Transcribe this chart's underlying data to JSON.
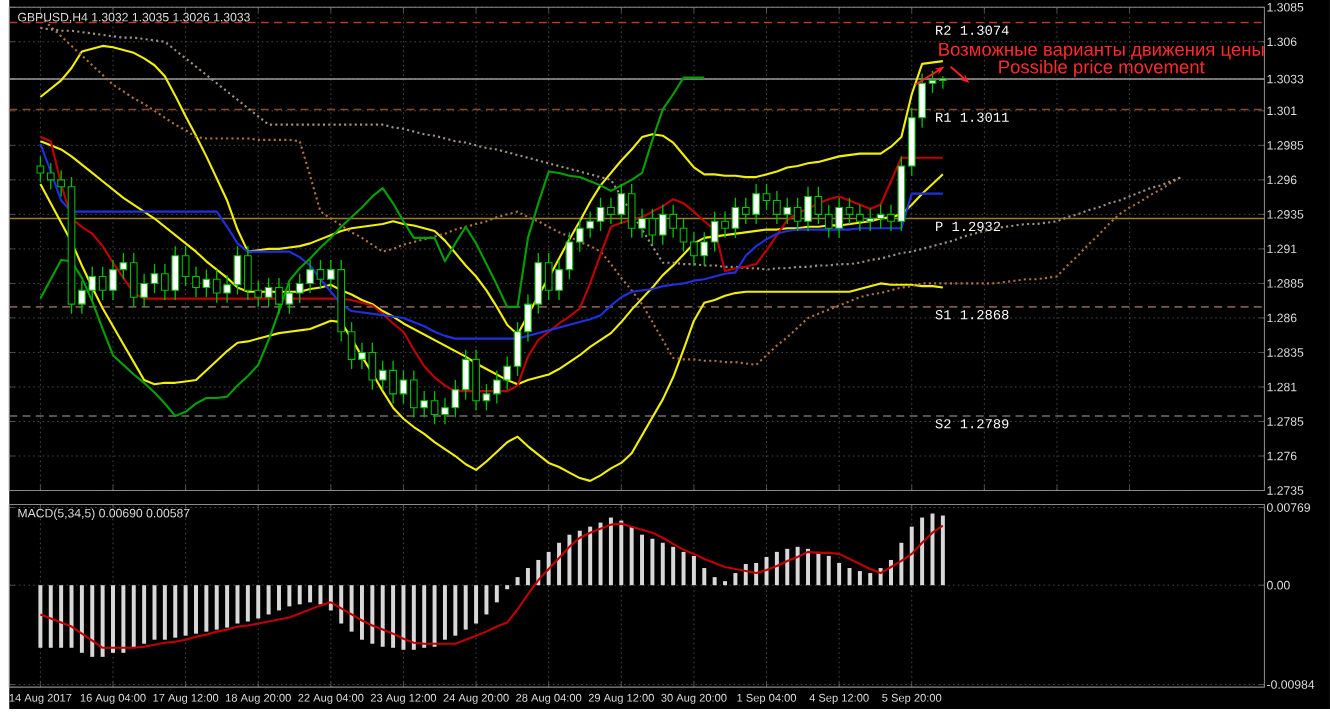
{
  "chart_data": [
    {
      "type": "candlestick",
      "title": "GBPUSD,H4  1.3032 1.3035 1.3026 1.3033",
      "categories": [
        null,
        null,
        null,
        null,
        null,
        null,
        null,
        null,
        null,
        null,
        null,
        null,
        null,
        null,
        null,
        null,
        null,
        null,
        null,
        null,
        null,
        null,
        null,
        null,
        null,
        null,
        null,
        null,
        null,
        null,
        null,
        null,
        null,
        null,
        null,
        null,
        null,
        null,
        null,
        null,
        null,
        null,
        null,
        null,
        null,
        null,
        null,
        null,
        null,
        null,
        null,
        null,
        null,
        null,
        null,
        null,
        null,
        null,
        null,
        null,
        null,
        null,
        null,
        null,
        null,
        null,
        null,
        null,
        null,
        null,
        null,
        null,
        null,
        null,
        null,
        null,
        null,
        null,
        null,
        null,
        null,
        null,
        null,
        null,
        null,
        null,
        null,
        null,
        null,
        null,
        null,
        null,
        null,
        null,
        null,
        null,
        null,
        null,
        null,
        null,
        null,
        null,
        null,
        null,
        null,
        null,
        null,
        null,
        null,
        null,
        null
      ],
      "ohlc": [
        [
          1.297,
          1.2977,
          1.2958,
          1.2965
        ],
        [
          1.2965,
          1.2972,
          1.2953,
          1.296
        ],
        [
          1.296,
          1.2967,
          1.2948,
          1.2955
        ],
        [
          1.2955,
          1.2962,
          1.2863,
          1.287
        ],
        [
          1.287,
          1.2887,
          1.2863,
          1.288
        ],
        [
          1.288,
          1.2897,
          1.2873,
          1.289
        ],
        [
          1.289,
          1.2897,
          1.2873,
          1.288
        ],
        [
          1.288,
          1.2902,
          1.2873,
          1.2895
        ],
        [
          1.2895,
          1.2907,
          1.2888,
          1.29
        ],
        [
          1.29,
          1.2907,
          1.2868,
          1.2875
        ],
        [
          1.2875,
          1.2892,
          1.2868,
          1.2885
        ],
        [
          1.2885,
          1.2899,
          1.2878,
          1.2892
        ],
        [
          1.2892,
          1.2899,
          1.2873,
          1.288
        ],
        [
          1.288,
          1.2912,
          1.2873,
          1.2905
        ],
        [
          1.2905,
          1.2912,
          1.2883,
          1.289
        ],
        [
          1.289,
          1.2897,
          1.2875,
          1.2882
        ],
        [
          1.2882,
          1.2895,
          1.2875,
          1.2888
        ],
        [
          1.2888,
          1.2895,
          1.2871,
          1.2878
        ],
        [
          1.2878,
          1.2891,
          1.2871,
          1.2884
        ],
        [
          1.2884,
          1.2912,
          1.2877,
          1.2905
        ],
        [
          1.2905,
          1.2912,
          1.2873,
          1.288
        ],
        [
          1.288,
          1.2887,
          1.2868,
          1.2875
        ],
        [
          1.2875,
          1.2889,
          1.2868,
          1.2882
        ],
        [
          1.2882,
          1.2889,
          1.2863,
          1.287
        ],
        [
          1.287,
          1.2885,
          1.2863,
          1.2878
        ],
        [
          1.2878,
          1.2892,
          1.2871,
          1.2885
        ],
        [
          1.2885,
          1.2902,
          1.2878,
          1.2895
        ],
        [
          1.2895,
          1.2902,
          1.2881,
          1.2888
        ],
        [
          1.2888,
          1.2902,
          1.2881,
          1.2895
        ],
        [
          1.2895,
          1.2902,
          1.2843,
          1.285
        ],
        [
          1.285,
          1.2857,
          1.2823,
          1.283
        ],
        [
          1.283,
          1.2842,
          1.2823,
          1.2835
        ],
        [
          1.2835,
          1.2842,
          1.2808,
          1.2815
        ],
        [
          1.2815,
          1.2829,
          1.2808,
          1.2822
        ],
        [
          1.2822,
          1.2829,
          1.2798,
          1.2805
        ],
        [
          1.2805,
          1.2822,
          1.2798,
          1.2815
        ],
        [
          1.2815,
          1.2822,
          1.2788,
          1.2795
        ],
        [
          1.2795,
          1.2807,
          1.2788,
          1.28
        ],
        [
          1.28,
          1.2807,
          1.2783,
          1.279
        ],
        [
          1.279,
          1.2802,
          1.2783,
          1.2795
        ],
        [
          1.2795,
          1.2815,
          1.2788,
          1.2808
        ],
        [
          1.2808,
          1.2837,
          1.2801,
          1.283
        ],
        [
          1.283,
          1.2837,
          1.2793,
          1.28
        ],
        [
          1.28,
          1.2812,
          1.2793,
          1.2805
        ],
        [
          1.2805,
          1.2822,
          1.2798,
          1.2815
        ],
        [
          1.2815,
          1.2832,
          1.2808,
          1.2825
        ],
        [
          1.2825,
          1.2857,
          1.2818,
          1.285
        ],
        [
          1.285,
          1.2877,
          1.2843,
          1.287
        ],
        [
          1.287,
          1.2907,
          1.2863,
          1.29
        ],
        [
          1.29,
          1.2907,
          1.2873,
          1.288
        ],
        [
          1.288,
          1.2902,
          1.2873,
          1.2895
        ],
        [
          1.2895,
          1.2922,
          1.2888,
          1.2915
        ],
        [
          1.2915,
          1.2932,
          1.2908,
          1.2925
        ],
        [
          1.2925,
          1.2937,
          1.2918,
          1.293
        ],
        [
          1.293,
          1.2947,
          1.2923,
          1.294
        ],
        [
          1.294,
          1.2947,
          1.2928,
          1.2935
        ],
        [
          1.2935,
          1.2957,
          1.2928,
          1.295
        ],
        [
          1.295,
          1.2957,
          1.2918,
          1.2925
        ],
        [
          1.2925,
          1.2939,
          1.2918,
          1.2932
        ],
        [
          1.2932,
          1.2939,
          1.2913,
          1.292
        ],
        [
          1.292,
          1.2942,
          1.2913,
          1.2935
        ],
        [
          1.2935,
          1.2942,
          1.2918,
          1.2925
        ],
        [
          1.2925,
          1.2932,
          1.2908,
          1.2915
        ],
        [
          1.2915,
          1.2922,
          1.2898,
          1.2905
        ],
        [
          1.2905,
          1.2922,
          1.2898,
          1.2915
        ],
        [
          1.2915,
          1.2937,
          1.2908,
          1.293
        ],
        [
          1.293,
          1.2937,
          1.2918,
          1.2925
        ],
        [
          1.2925,
          1.2947,
          1.2918,
          1.294
        ],
        [
          1.294,
          1.2947,
          1.2928,
          1.2935
        ],
        [
          1.2935,
          1.2957,
          1.2928,
          1.295
        ],
        [
          1.295,
          1.2957,
          1.2938,
          1.2945
        ],
        [
          1.2945,
          1.2952,
          1.2928,
          1.2935
        ],
        [
          1.2935,
          1.2947,
          1.2928,
          1.294
        ],
        [
          1.294,
          1.2947,
          1.2923,
          1.293
        ],
        [
          1.293,
          1.2955,
          1.2923,
          1.2948
        ],
        [
          1.2948,
          1.2955,
          1.2928,
          1.2935
        ],
        [
          1.2935,
          1.2942,
          1.2918,
          1.2925
        ],
        [
          1.2925,
          1.2947,
          1.2918,
          1.294
        ],
        [
          1.294,
          1.2947,
          1.2928,
          1.2935
        ],
        [
          1.2935,
          1.2942,
          1.2923,
          1.293
        ],
        [
          1.293,
          1.2939,
          1.2923,
          1.2932
        ],
        [
          1.2932,
          1.2942,
          1.2925,
          1.2935
        ],
        [
          1.2935,
          1.2942,
          1.2923,
          1.293
        ],
        [
          1.293,
          1.2977,
          1.2923,
          1.297
        ],
        [
          1.297,
          1.3012,
          1.2963,
          1.3005
        ],
        [
          1.3005,
          1.3037,
          1.2998,
          1.303
        ],
        [
          1.303,
          1.3039,
          1.3023,
          1.3032
        ],
        [
          1.3032,
          1.3035,
          1.3026,
          1.3033
        ],
        null,
        null,
        null,
        null,
        null,
        null,
        null,
        null,
        null,
        null,
        null,
        null,
        null,
        null,
        null,
        null,
        null,
        null,
        null,
        null,
        null,
        null,
        null
      ],
      "ylim": [
        1.2735,
        1.3085
      ],
      "yticks": [
        1.3085,
        1.306,
        {
          "value": 1.3033,
          "label": "1.3033"
        },
        1.301,
        1.2985,
        1.296,
        1.2935,
        1.291,
        1.2885,
        1.286,
        1.2835,
        1.281,
        1.2785,
        1.276,
        1.2735
      ],
      "tick_labels": "y",
      "grid": true,
      "ref_lines": [
        {
          "axis": "y",
          "value": 1.3074,
          "label": "R2 1.3074",
          "color": "#c0392b",
          "line_style": "dashed"
        },
        {
          "axis": "y",
          "value": 1.3011,
          "label": "R1 1.3011",
          "color": "#8b4a2b",
          "line_style": "dashed"
        },
        {
          "axis": "y",
          "value": 1.3033,
          "color": "#9a9a9a",
          "line_style": "solid"
        },
        {
          "axis": "y",
          "value": 1.2932,
          "label": "P 1.2932",
          "color": "#9a7d2a",
          "line_style": "solid"
        },
        {
          "axis": "y",
          "value": 1.2868,
          "label": "S1 1.2868",
          "color": "#7a5a50",
          "line_style": "dashed"
        },
        {
          "axis": "y",
          "value": 1.2789,
          "label": "S2 1.2789",
          "color": "#7a6a6a",
          "line_style": "dashed"
        }
      ],
      "annotations": [
        "Возможные варианты движения цены",
        "Possible price movement"
      ],
      "series": [
        {
          "type": "line",
          "color": "#f0f000",
          "values": [
            1.302,
            1.3026,
            1.3032,
            1.3041,
            1.3053,
            1.3055,
            1.3057,
            1.3056,
            1.3054,
            1.3052,
            1.3048,
            1.3043,
            1.3035,
            1.3021,
            1.3006,
            1.2992,
            1.2977,
            1.2961,
            1.2945,
            1.2924,
            1.2908,
            1.2909,
            1.291,
            1.291,
            1.2911,
            1.2912,
            1.2914,
            1.2917,
            1.292,
            1.2923,
            1.2925,
            1.2926,
            1.2927,
            1.2928,
            1.293,
            1.2928,
            1.2927,
            1.2925,
            1.2923,
            1.2916,
            1.2907,
            1.2898,
            1.289,
            1.288,
            1.2868,
            1.2855,
            1.2848,
            1.2862,
            1.2876,
            1.2889,
            1.2903,
            1.2917,
            1.293,
            1.2944,
            1.2956,
            1.2965,
            1.2974,
            1.2982,
            1.2991,
            1.2993,
            1.2992,
            1.2987,
            1.2978,
            1.2969,
            1.2964,
            1.2964,
            1.2963,
            1.2963,
            1.2962,
            1.2962,
            1.2964,
            1.2966,
            1.2969,
            1.297,
            1.2972,
            1.2973,
            1.2975,
            1.2977,
            1.2978,
            1.2979,
            1.2979,
            1.2979,
            1.2984,
            1.2991,
            1.3022,
            1.3044,
            1.3045,
            1.3046,
            null,
            null,
            null,
            null,
            null,
            null,
            null,
            null,
            null,
            null,
            null,
            null,
            null,
            null,
            null,
            null,
            null,
            null,
            null,
            null,
            null,
            null,
            null
          ]
        },
        {
          "type": "line",
          "color": "#f0f000",
          "values": [
            1.2988,
            1.2985,
            1.2982,
            1.2977,
            1.2971,
            1.2965,
            1.2959,
            1.2953,
            1.2947,
            1.2942,
            1.2937,
            1.2932,
            1.2926,
            1.292,
            1.2914,
            1.2908,
            1.2901,
            1.2895,
            1.2889,
            1.2882,
            1.2879,
            1.2879,
            1.2879,
            1.2879,
            1.2879,
            1.2879,
            1.2881,
            1.2882,
            1.2884,
            1.288,
            1.2877,
            1.2873,
            1.287,
            1.2865,
            1.2861,
            1.2856,
            1.2852,
            1.2848,
            1.2844,
            1.284,
            1.2836,
            1.2832,
            1.2827,
            1.2823,
            1.2819,
            1.2815,
            1.2812,
            1.2815,
            1.2817,
            1.2819,
            1.2823,
            1.2828,
            1.2833,
            1.2839,
            1.2844,
            1.2849,
            1.2857,
            1.2866,
            1.2874,
            1.2882,
            1.2891,
            1.2898,
            1.2906,
            1.2914,
            1.2918,
            1.2919,
            1.292,
            1.2921,
            1.2922,
            1.2923,
            1.2924,
            1.2924,
            1.2925,
            1.2925,
            1.2926,
            1.2926,
            1.2927,
            1.2927,
            1.2928,
            1.2929,
            1.293,
            1.2932,
            1.2933,
            1.2935,
            1.2942,
            1.295,
            1.2957,
            1.2964,
            null,
            null,
            null,
            null,
            null,
            null,
            null,
            null,
            null,
            null,
            null,
            null,
            null,
            null,
            null,
            null,
            null,
            null,
            null,
            null,
            null,
            null,
            null
          ]
        },
        {
          "type": "line",
          "color": "#f0f000",
          "values": [
            1.2957,
            1.2943,
            1.2929,
            1.2915,
            1.2898,
            1.2882,
            1.2867,
            1.2854,
            1.2841,
            1.2828,
            1.2815,
            1.2812,
            1.2813,
            1.2813,
            1.2814,
            1.2815,
            1.2822,
            1.2829,
            1.2836,
            1.2842,
            1.2843,
            1.2845,
            1.2847,
            1.2849,
            1.285,
            1.2851,
            1.2852,
            1.2855,
            1.2858,
            1.2857,
            1.2845,
            1.2832,
            1.282,
            1.2807,
            1.2795,
            1.2787,
            1.2781,
            1.2776,
            1.277,
            1.2765,
            1.276,
            1.2754,
            1.275,
            1.2756,
            1.2763,
            1.277,
            1.2774,
            1.2767,
            1.2761,
            1.2755,
            1.2752,
            1.2748,
            1.2744,
            1.2742,
            1.2746,
            1.2751,
            1.2755,
            1.2762,
            1.2775,
            1.2788,
            1.2801,
            1.2817,
            1.2837,
            1.2858,
            1.2871,
            1.2873,
            1.2876,
            1.2878,
            1.2879,
            1.2879,
            1.2879,
            1.2879,
            1.2879,
            1.2879,
            1.2879,
            1.2879,
            1.2879,
            1.2879,
            1.2879,
            1.2881,
            1.2883,
            1.2885,
            1.2884,
            1.2884,
            1.2884,
            1.2883,
            1.2883,
            1.2882,
            null,
            null,
            null,
            null,
            null,
            null,
            null,
            null,
            null,
            null,
            null,
            null,
            null,
            null,
            null,
            null,
            null,
            null,
            null,
            null,
            null,
            null,
            null
          ]
        },
        {
          "type": "line",
          "color": "#b07040",
          "line_style": "dotted",
          "values": [
            1.3078,
            1.3071,
            1.3064,
            1.3057,
            1.305,
            1.3043,
            1.3036,
            1.3029,
            1.3024,
            1.3019,
            1.3015,
            1.301,
            1.3005,
            1.3,
            1.2996,
            1.2991,
            1.299,
            1.299,
            1.299,
            1.299,
            1.299,
            1.2989,
            1.2989,
            1.2989,
            1.2989,
            1.2988,
            1.2963,
            1.2937,
            1.2932,
            1.2927,
            1.2922,
            1.2918,
            1.2913,
            1.2908,
            1.291,
            1.2913,
            1.2915,
            1.2917,
            1.2919,
            1.2921,
            1.2924,
            1.2926,
            1.2928,
            1.293,
            1.2933,
            1.2935,
            1.2937,
            1.2933,
            1.293,
            1.2926,
            1.2922,
            1.2919,
            1.2915,
            1.2912,
            1.2908,
            1.2899,
            1.2889,
            1.288,
            1.287,
            1.2857,
            1.2844,
            1.2831,
            1.283,
            1.283,
            1.2829,
            1.2829,
            1.2828,
            1.2828,
            1.2827,
            1.2826,
            1.2833,
            1.284,
            1.2846,
            1.2853,
            1.286,
            1.2863,
            1.2866,
            1.2869,
            1.2872,
            1.2875,
            1.2877,
            1.2878,
            1.288,
            1.2882,
            1.2883,
            1.2885,
            1.2885,
            1.2885,
            1.2885,
            1.2885,
            1.2885,
            1.2885,
            1.2885,
            1.2886,
            1.2887,
            1.2888,
            1.2888,
            1.2889,
            1.289,
            1.2898,
            1.2905,
            1.2913,
            1.292,
            1.2928,
            1.2935,
            1.294,
            1.2944,
            1.2949,
            1.2953,
            1.2958,
            1.2962
          ]
        },
        {
          "type": "line",
          "color": "#a09080",
          "line_style": "dotted",
          "values": [
            1.307,
            1.3069,
            1.3068,
            1.3068,
            1.3067,
            1.3066,
            1.3065,
            1.3064,
            1.3063,
            1.3063,
            1.3062,
            1.3061,
            1.306,
            1.3054,
            1.3048,
            1.3042,
            1.3036,
            1.303,
            1.3024,
            1.3018,
            1.3012,
            1.3006,
            1.3,
            1.3,
            1.3,
            1.3,
            1.3,
            1.3,
            1.3,
            1.3,
            1.3,
            1.3,
            1.3,
            1.3,
            1.2998,
            1.2997,
            1.2995,
            1.2993,
            1.2992,
            1.299,
            1.2988,
            1.2987,
            1.2985,
            1.2983,
            1.2982,
            1.298,
            1.2978,
            1.2976,
            1.2974,
            1.2972,
            1.297,
            1.2968,
            1.2966,
            1.2964,
            1.2962,
            1.296,
            1.2948,
            1.2936,
            1.2924,
            1.2912,
            1.29,
            1.29,
            1.2899,
            1.2899,
            1.2898,
            1.2898,
            1.2897,
            1.2897,
            1.2896,
            1.2896,
            1.2895,
            1.2896,
            1.2896,
            1.2897,
            1.2897,
            1.2898,
            1.2898,
            1.2899,
            1.2899,
            1.29,
            1.2902,
            1.2903,
            1.2905,
            1.2907,
            1.2908,
            1.291,
            1.2912,
            1.2914,
            1.2916,
            1.2919,
            1.2921,
            1.2923,
            1.2925,
            1.2926,
            1.2927,
            1.2928,
            1.2928,
            1.2929,
            1.293,
            1.2933,
            1.2935,
            1.2938,
            1.294,
            1.2943,
            1.2945,
            1.2948,
            1.2951,
            1.2954,
            1.2956,
            1.2959,
            1.2962
          ]
        },
        {
          "type": "line",
          "color": "#c00000",
          "values": [
            1.2991,
            1.2988,
            1.2957,
            1.2932,
            1.2926,
            1.2921,
            1.2912,
            1.29,
            1.2889,
            1.2878,
            1.2874,
            1.2874,
            1.2874,
            1.2874,
            1.2874,
            1.2874,
            1.2874,
            1.2874,
            1.2874,
            1.2874,
            1.2874,
            1.2874,
            1.2874,
            1.2874,
            1.2874,
            1.2874,
            1.2874,
            1.2874,
            1.2874,
            1.2874,
            1.2873,
            1.2871,
            1.2869,
            1.2863,
            1.2856,
            1.285,
            1.2837,
            1.2825,
            1.2817,
            1.2811,
            1.2807,
            1.2807,
            1.2807,
            1.2807,
            1.2807,
            1.2807,
            1.2811,
            1.2832,
            1.2844,
            1.285,
            1.2856,
            1.2861,
            1.2867,
            1.2885,
            1.2906,
            1.2926,
            1.2929,
            1.2931,
            1.2933,
            1.2937,
            1.2941,
            1.2946,
            1.2943,
            1.2937,
            1.293,
            1.2924,
            1.2894,
            1.2896,
            1.2897,
            1.2899,
            1.2909,
            1.292,
            1.2931,
            1.2936,
            1.2939,
            1.2943,
            1.2946,
            1.2948,
            1.2945,
            1.2942,
            1.2939,
            1.2942,
            1.2959,
            1.2976,
            1.2976,
            1.2976,
            1.2976,
            1.2976,
            null,
            null,
            null,
            null,
            null,
            null,
            null,
            null,
            null,
            null,
            null,
            null,
            null,
            null,
            null,
            null,
            null,
            null,
            null,
            null,
            null,
            null,
            null
          ]
        },
        {
          "type": "line",
          "color": "#2030e0",
          "values": [
            1.2986,
            1.2966,
            1.2945,
            1.2937,
            1.2937,
            1.2937,
            1.2937,
            1.2937,
            1.2937,
            1.2937,
            1.2937,
            1.2937,
            1.2937,
            1.2937,
            1.2937,
            1.2937,
            1.2937,
            1.2937,
            1.2926,
            1.2914,
            1.2908,
            1.2908,
            1.2908,
            1.2908,
            1.2908,
            1.2904,
            1.2898,
            1.2888,
            1.2879,
            1.287,
            1.2865,
            1.2864,
            1.2863,
            1.2862,
            1.2861,
            1.286,
            1.2857,
            1.2854,
            1.285,
            1.2847,
            1.2845,
            1.2845,
            1.2845,
            1.2845,
            1.2845,
            1.2845,
            1.2845,
            1.2847,
            1.2849,
            1.2851,
            1.2853,
            1.2855,
            1.2857,
            1.2859,
            1.2862,
            1.2869,
            1.2875,
            1.2879,
            1.288,
            1.2881,
            1.2883,
            1.2884,
            1.2885,
            1.2887,
            1.2888,
            1.289,
            1.2892,
            1.2893,
            1.2905,
            1.2912,
            1.2917,
            1.2921,
            1.2923,
            1.2924,
            1.2924,
            1.2924,
            1.2924,
            1.2924,
            1.2924,
            1.2925,
            1.2925,
            1.2925,
            1.2925,
            1.2925,
            1.295,
            1.295,
            1.295,
            1.295,
            null,
            null,
            null,
            null,
            null,
            null,
            null,
            null,
            null,
            null,
            null,
            null,
            null,
            null,
            null,
            null,
            null,
            null,
            null,
            null,
            null,
            null,
            null
          ]
        },
        {
          "type": "line",
          "color": "#00a000",
          "values": [
            1.2874,
            1.2888,
            1.2902,
            1.2901,
            1.2889,
            1.2872,
            1.2852,
            1.2833,
            1.2826,
            1.2819,
            1.2813,
            1.2806,
            1.2798,
            1.2789,
            1.2792,
            1.2798,
            1.2802,
            1.2802,
            1.2803,
            1.2811,
            1.2818,
            1.2826,
            1.2844,
            1.2865,
            1.2887,
            1.2896,
            1.2903,
            1.2911,
            1.2918,
            1.2926,
            1.2933,
            1.294,
            1.2948,
            1.2954,
            1.2943,
            1.293,
            1.2918,
            1.2918,
            1.2918,
            1.2901,
            1.2914,
            1.2926,
            1.2914,
            1.2899,
            1.2884,
            1.2868,
            1.2868,
            1.2918,
            1.2943,
            1.2966,
            1.2965,
            1.2963,
            1.2962,
            1.2959,
            1.2956,
            1.2952,
            1.2956,
            1.296,
            1.2965,
            1.2989,
            1.3011,
            1.3022,
            1.3034,
            1.3034,
            1.3034,
            null,
            null,
            null,
            null,
            null,
            null,
            null,
            null,
            null,
            null,
            null,
            null,
            null,
            null,
            null,
            null,
            null,
            null,
            null,
            null,
            null,
            null,
            null,
            null,
            null,
            null,
            null,
            null,
            null,
            null,
            null,
            null,
            null,
            null,
            null,
            null,
            null,
            null,
            null,
            null,
            null,
            null,
            null,
            null,
            null,
            null
          ]
        }
      ]
    },
    {
      "type": "bar",
      "title": "MACD(5,34,5) 0.00690 0.00587",
      "categories": [
        "14 Aug 2017",
        null,
        null,
        null,
        null,
        null,
        null,
        "16 Aug 04:00",
        null,
        null,
        null,
        null,
        null,
        null,
        "17 Aug 12:00",
        null,
        null,
        null,
        null,
        null,
        null,
        "18 Aug 20:00",
        null,
        null,
        null,
        null,
        null,
        null,
        "22 Aug 04:00",
        null,
        null,
        null,
        null,
        null,
        null,
        "23 Aug 12:00",
        null,
        null,
        null,
        null,
        null,
        null,
        "24 Aug 20:00",
        null,
        null,
        null,
        null,
        null,
        null,
        "28 Aug 04:00",
        null,
        null,
        null,
        null,
        null,
        null,
        "29 Aug 12:00",
        null,
        null,
        null,
        null,
        null,
        null,
        "30 Aug 20:00",
        null,
        null,
        null,
        null,
        null,
        null,
        "1 Sep 04:00",
        null,
        null,
        null,
        null,
        null,
        null,
        "4 Sep 12:00",
        null,
        null,
        null,
        null,
        null,
        null,
        "5 Sep 20:00",
        null,
        null,
        null,
        null,
        null,
        null,
        null,
        null,
        null,
        null,
        null,
        null,
        null,
        null,
        null,
        null,
        null,
        null,
        null,
        null,
        null,
        null,
        null,
        null,
        null,
        null
      ],
      "ylim": [
        -0.0101,
        0.008
      ],
      "yticks": [
        {
          "value": 0.00769,
          "label": "0.00769"
        },
        {
          "value": 0,
          "label": "0.00"
        },
        {
          "value": -0.00984,
          "label": "-0.00984"
        }
      ],
      "grid": true,
      "series": [
        {
          "type": "bar",
          "color": "#d8d8d8",
          "values": [
            -0.0062,
            -0.0062,
            -0.0062,
            -0.0062,
            -0.0067,
            -0.0071,
            -0.0071,
            -0.0067,
            -0.0067,
            -0.0062,
            -0.0058,
            -0.0054,
            -0.0054,
            -0.0052,
            -0.005,
            -0.0048,
            -0.0046,
            -0.0044,
            -0.0042,
            -0.0038,
            -0.0036,
            -0.0033,
            -0.0029,
            -0.0025,
            -0.0021,
            -0.0019,
            -0.0017,
            -0.0019,
            -0.0025,
            -0.0038,
            -0.0046,
            -0.0054,
            -0.0058,
            -0.0061,
            -0.0062,
            -0.0064,
            -0.0064,
            -0.0062,
            -0.0061,
            -0.0054,
            -0.005,
            -0.0044,
            -0.0038,
            -0.0029,
            -0.0017,
            -0.0004,
            0.0008,
            0.0017,
            0.0025,
            0.0033,
            0.0042,
            0.005,
            0.0054,
            0.0058,
            0.0062,
            0.0067,
            0.0064,
            0.0058,
            0.005,
            0.0046,
            0.0042,
            0.0038,
            0.0033,
            0.0029,
            0.0017,
            0.0008,
            0.0004,
            0.0012,
            0.0021,
            0.0022,
            0.0028,
            0.0033,
            0.0036,
            0.0038,
            0.0036,
            0.0033,
            0.0029,
            0.0022,
            0.0017,
            0.0014,
            0.0012,
            0.0017,
            0.0025,
            0.0042,
            0.0058,
            0.0067,
            0.0071,
            0.0069,
            null,
            null,
            null,
            null,
            null,
            null,
            null,
            null,
            null,
            null,
            null,
            null,
            null,
            null,
            null,
            null,
            null,
            null,
            null,
            null,
            null,
            null,
            null
          ]
        },
        {
          "type": "line",
          "color": "#c00000",
          "values": [
            -0.0029,
            -0.0033,
            -0.0037,
            -0.0041,
            -0.0048,
            -0.0055,
            -0.0062,
            -0.0062,
            -0.0062,
            -0.0062,
            -0.0061,
            -0.0059,
            -0.0057,
            -0.0056,
            -0.0054,
            -0.0051,
            -0.0049,
            -0.0046,
            -0.0044,
            -0.0041,
            -0.004,
            -0.0038,
            -0.0036,
            -0.0034,
            -0.0032,
            -0.0028,
            -0.0024,
            -0.002,
            -0.0017,
            -0.0023,
            -0.0029,
            -0.0035,
            -0.004,
            -0.0044,
            -0.0048,
            -0.0053,
            -0.0057,
            -0.0058,
            -0.0058,
            -0.0058,
            -0.0058,
            -0.0054,
            -0.005,
            -0.0046,
            -0.0041,
            -0.0037,
            -0.0024,
            -0.0009,
            0.0005,
            0.0016,
            0.0027,
            0.0038,
            0.0047,
            0.0052,
            0.0056,
            0.006,
            0.0061,
            0.0058,
            0.0055,
            0.0052,
            0.0047,
            0.0041,
            0.0035,
            0.0031,
            0.0026,
            0.0022,
            0.0018,
            0.0016,
            0.0014,
            0.0012,
            0.0015,
            0.0019,
            0.0024,
            0.0028,
            0.0033,
            0.0032,
            0.0032,
            0.0031,
            0.0026,
            0.0021,
            0.0016,
            0.0012,
            0.0018,
            0.0024,
            0.0031,
            0.0042,
            0.0052,
            0.0059,
            null,
            null,
            null,
            null,
            null,
            null,
            null,
            null,
            null,
            null,
            null,
            null,
            null,
            null,
            null,
            null,
            null,
            null,
            null,
            null,
            null,
            null,
            null
          ]
        }
      ]
    }
  ]
}
